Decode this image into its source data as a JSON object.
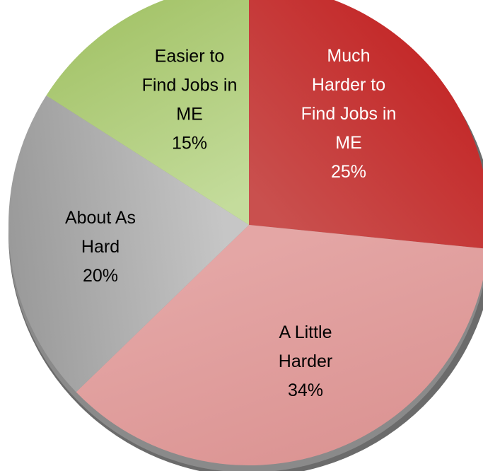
{
  "chart_data": {
    "type": "pie",
    "title": "",
    "slices": [
      {
        "label_lines": [
          "Much",
          "Harder to",
          "Find Jobs in",
          "ME"
        ],
        "pct_label": "25%",
        "value": 25,
        "color": "#c42a2a",
        "color_light": "#c9504e",
        "text_color": "#ffffff"
      },
      {
        "label_lines": [
          "A Little",
          "Harder"
        ],
        "pct_label": "34%",
        "value": 34,
        "color": "#dc9594",
        "color_light": "#e4a6a5",
        "text_color": "#000000"
      },
      {
        "label_lines": [
          "About As",
          "Hard"
        ],
        "pct_label": "20%",
        "value": 20,
        "color": "#9a9a9a",
        "color_light": "#c6c6c6",
        "text_color": "#000000"
      },
      {
        "label_lines": [
          "Easier to",
          "Find Jobs in",
          "ME"
        ],
        "pct_label": "15%",
        "value": 15,
        "color": "#a6c56c",
        "color_light": "#c4dc9c",
        "text_color": "#000000"
      }
    ]
  }
}
